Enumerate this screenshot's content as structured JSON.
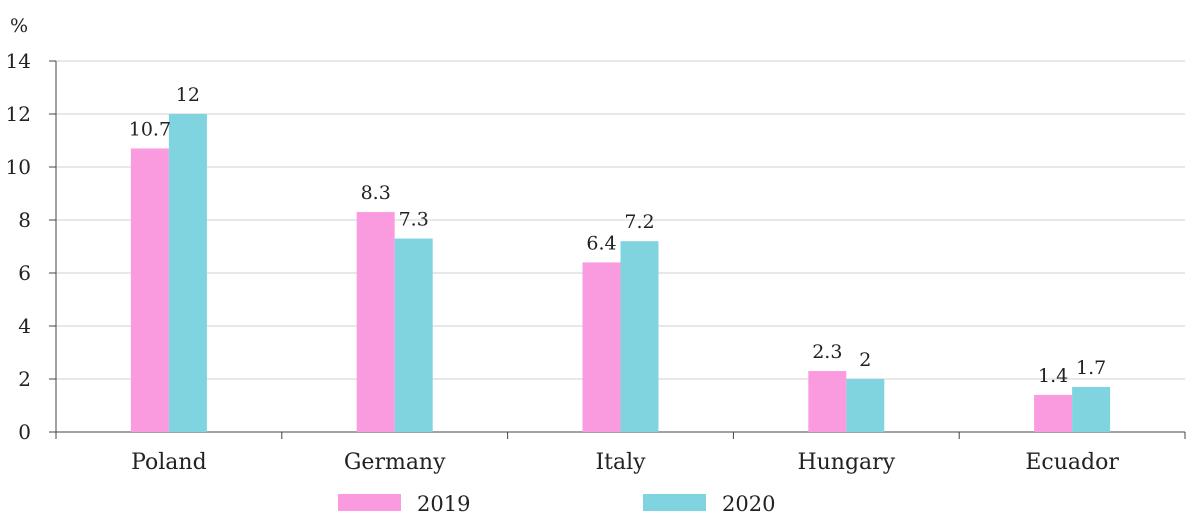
{
  "chart_data": {
    "type": "bar",
    "ylabel": "%",
    "ylim": [
      0,
      14
    ],
    "yticks": [
      0,
      2,
      4,
      6,
      8,
      10,
      12,
      14
    ],
    "grid": true,
    "legend_position": "bottom",
    "categories": [
      "Poland",
      "Germany",
      "Italy",
      "Hungary",
      "Ecuador"
    ],
    "series": [
      {
        "name": "2019",
        "values": [
          10.7,
          8.3,
          6.4,
          2.3,
          1.4
        ],
        "labels": [
          "10.7",
          "8.3",
          "6.4",
          "2.3",
          "1.4"
        ],
        "color": "#fa9be0"
      },
      {
        "name": "2020",
        "values": [
          12,
          7.3,
          7.2,
          2,
          1.7
        ],
        "labels": [
          "12",
          "7.3",
          "7.2",
          "2",
          "1.7"
        ],
        "color": "#80d4e0"
      }
    ]
  }
}
